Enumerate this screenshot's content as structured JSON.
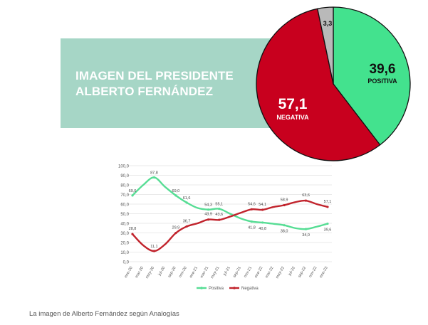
{
  "banner": {
    "title_line1": "IMAGEN DEL PRESIDENTE",
    "title_line2": "ALBERTO FERNÁNDEZ"
  },
  "caption": "La imagen de Alberto Fernández según Analogías",
  "colors": {
    "banner": "#a6d6c6",
    "positive": "#43e28e",
    "negative": "#c8001e",
    "other": "#b9b9b9",
    "line_positive": "#56dd94",
    "line_negative": "#c1232c"
  },
  "chart_data": [
    {
      "type": "pie",
      "slices": [
        {
          "value": 39.6,
          "label": "39,6",
          "sublabel": "POSITIVA"
        },
        {
          "value": 57.1,
          "label": "57,1",
          "sublabel": "NEGATIVA"
        },
        {
          "value": 3.3,
          "label": "3,3",
          "sublabel": ""
        }
      ]
    },
    {
      "type": "line",
      "categories": [
        "ene-20",
        "mar-20",
        "may-20",
        "jul-20",
        "sep-20",
        "nov-20",
        "ene-21",
        "mar-21",
        "may-21",
        "jul-21",
        "sep-21",
        "nov-21",
        "ene-22",
        "mar-22",
        "may-22",
        "jul-22",
        "sep-22",
        "nov-22",
        "ene-23"
      ],
      "yticks": [
        "0,0",
        "10,0",
        "20,0",
        "30,0",
        "40,0",
        "50,0",
        "60,0",
        "70,0",
        "80,0",
        "90,0",
        "100,0"
      ],
      "ylim": [
        0,
        100
      ],
      "grid": true,
      "legend_position": "bottom",
      "series": [
        {
          "name": "Positiva",
          "values": [
            69.0,
            80.0,
            87.8,
            78.0,
            69.0,
            61.6,
            56.0,
            54.3,
            55.1,
            50.0,
            45.0,
            41.8,
            40.8,
            39.5,
            38.0,
            35.0,
            34.0,
            36.5,
            39.6
          ],
          "point_labels": [
            {
              "index": 0,
              "text": "69,0"
            },
            {
              "index": 2,
              "text": "87,8"
            },
            {
              "index": 4,
              "text": "69,0"
            },
            {
              "index": 5,
              "text": "61,6"
            },
            {
              "index": 7,
              "text": "54,3"
            },
            {
              "index": 8,
              "text": "55,1"
            },
            {
              "index": 11,
              "text": "41,8"
            },
            {
              "index": 12,
              "text": "40,8"
            },
            {
              "index": 14,
              "text": "38,0"
            },
            {
              "index": 16,
              "text": "34,0"
            },
            {
              "index": 18,
              "text": "39,6"
            }
          ]
        },
        {
          "name": "Negativa",
          "values": [
            28.8,
            17.0,
            11.1,
            18.0,
            29.9,
            36.7,
            40.0,
            43.9,
            43.6,
            47.0,
            51.0,
            54.6,
            54.1,
            57.0,
            58.9,
            62.0,
            63.6,
            60.0,
            57.1
          ],
          "point_labels": [
            {
              "index": 0,
              "text": "28,8"
            },
            {
              "index": 2,
              "text": "11,1"
            },
            {
              "index": 4,
              "text": "29,9"
            },
            {
              "index": 5,
              "text": "36,7"
            },
            {
              "index": 7,
              "text": "43,9"
            },
            {
              "index": 8,
              "text": "43,6"
            },
            {
              "index": 11,
              "text": "54,6"
            },
            {
              "index": 12,
              "text": "54,1"
            },
            {
              "index": 14,
              "text": "58,9"
            },
            {
              "index": 16,
              "text": "63,6"
            },
            {
              "index": 18,
              "text": "57,1"
            }
          ]
        }
      ]
    }
  ]
}
